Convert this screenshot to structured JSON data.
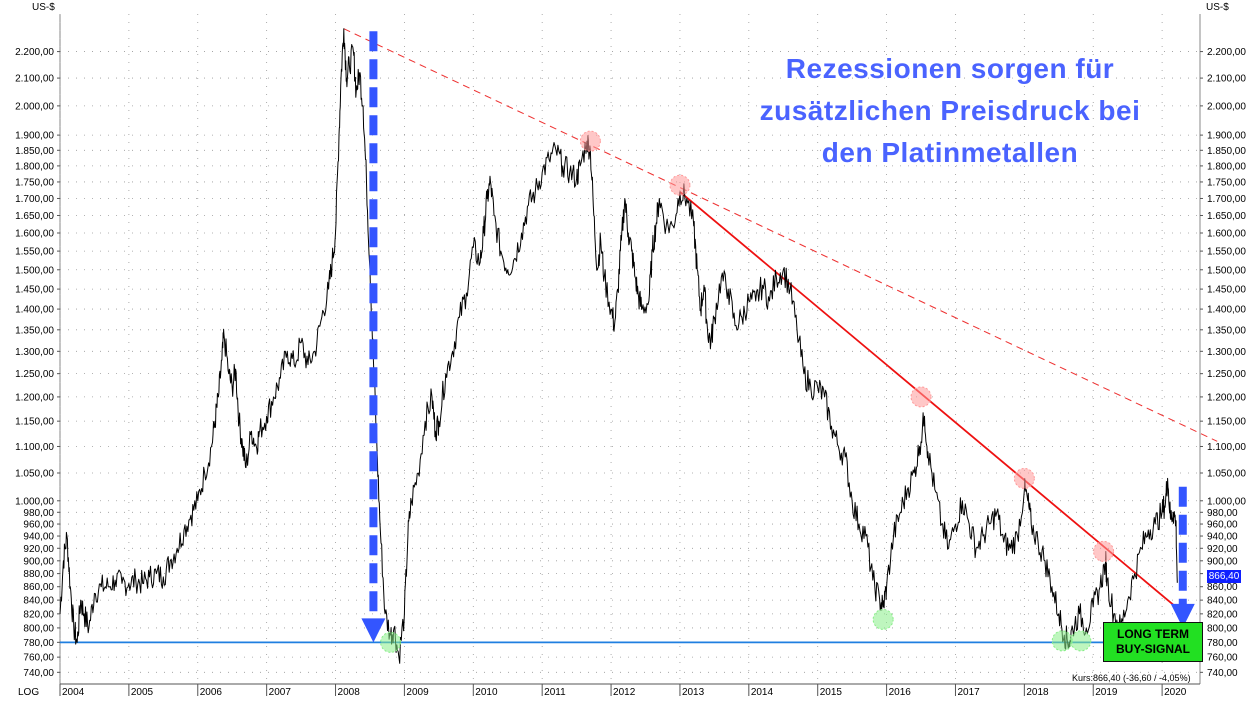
{
  "chart_data": {
    "type": "line",
    "title_lines": [
      "Rezessionen sorgen für",
      "zusätzlichen Preisdruck bei",
      "den Platinmetallen"
    ],
    "unit_left": "US-$",
    "unit_right": "US-$",
    "scale_label": "LOG",
    "log_scale": true,
    "grid": true,
    "ylim": [
      725,
      2350
    ],
    "xlim": [
      2004.0,
      2020.55
    ],
    "y_ticks": [
      {
        "value": 740,
        "label": "740,00"
      },
      {
        "value": 760,
        "label": "760,00"
      },
      {
        "value": 780,
        "label": "780,00"
      },
      {
        "value": 800,
        "label": "800,00"
      },
      {
        "value": 820,
        "label": "820,00"
      },
      {
        "value": 840,
        "label": "840,00"
      },
      {
        "value": 860,
        "label": "860,00"
      },
      {
        "value": 880,
        "label": "880,00"
      },
      {
        "value": 900,
        "label": "900,00"
      },
      {
        "value": 920,
        "label": "920,00"
      },
      {
        "value": 940,
        "label": "940,00"
      },
      {
        "value": 960,
        "label": "960,00"
      },
      {
        "value": 980,
        "label": "980,00"
      },
      {
        "value": 1000,
        "label": "1.000,00"
      },
      {
        "value": 1050,
        "label": "1.050,00"
      },
      {
        "value": 1100,
        "label": "1.100,00"
      },
      {
        "value": 1150,
        "label": "1.150,00"
      },
      {
        "value": 1200,
        "label": "1.200,00"
      },
      {
        "value": 1250,
        "label": "1.250,00"
      },
      {
        "value": 1300,
        "label": "1.300,00"
      },
      {
        "value": 1350,
        "label": "1.350,00"
      },
      {
        "value": 1400,
        "label": "1.400,00"
      },
      {
        "value": 1450,
        "label": "1.450,00"
      },
      {
        "value": 1500,
        "label": "1.500,00"
      },
      {
        "value": 1550,
        "label": "1.550,00"
      },
      {
        "value": 1600,
        "label": "1.600,00"
      },
      {
        "value": 1650,
        "label": "1.650,00"
      },
      {
        "value": 1700,
        "label": "1.700,00"
      },
      {
        "value": 1750,
        "label": "1.750,00"
      },
      {
        "value": 1800,
        "label": "1.800,00"
      },
      {
        "value": 1850,
        "label": "1.850,00"
      },
      {
        "value": 1900,
        "label": "1.900,00"
      },
      {
        "value": 2000,
        "label": "2.000,00"
      },
      {
        "value": 2100,
        "label": "2.100,00"
      },
      {
        "value": 2200,
        "label": "2.200,00"
      }
    ],
    "x_ticks": [
      {
        "value": 2004,
        "label": "2004"
      },
      {
        "value": 2005,
        "label": "2005"
      },
      {
        "value": 2006,
        "label": "2006"
      },
      {
        "value": 2007,
        "label": "2007"
      },
      {
        "value": 2008,
        "label": "2008"
      },
      {
        "value": 2009,
        "label": "2009"
      },
      {
        "value": 2010,
        "label": "2010"
      },
      {
        "value": 2011,
        "label": "2011"
      },
      {
        "value": 2012,
        "label": "2012"
      },
      {
        "value": 2013,
        "label": "2013"
      },
      {
        "value": 2014,
        "label": "2014"
      },
      {
        "value": 2015,
        "label": "2015"
      },
      {
        "value": 2016,
        "label": "2016"
      },
      {
        "value": 2017,
        "label": "2017"
      },
      {
        "value": 2018,
        "label": "2018"
      },
      {
        "value": 2019,
        "label": "2019"
      },
      {
        "value": 2020,
        "label": "2020"
      }
    ],
    "series": [
      {
        "color": "#000000",
        "points": [
          [
            2004.0,
            820
          ],
          [
            2004.05,
            900
          ],
          [
            2004.1,
            940
          ],
          [
            2004.15,
            860
          ],
          [
            2004.2,
            800
          ],
          [
            2004.25,
            780
          ],
          [
            2004.3,
            840
          ],
          [
            2004.35,
            820
          ],
          [
            2004.42,
            800
          ],
          [
            2004.5,
            850
          ],
          [
            2004.6,
            860
          ],
          [
            2004.7,
            860
          ],
          [
            2004.8,
            870
          ],
          [
            2004.9,
            865
          ],
          [
            2005.0,
            865
          ],
          [
            2005.1,
            870
          ],
          [
            2005.2,
            865
          ],
          [
            2005.3,
            875
          ],
          [
            2005.4,
            880
          ],
          [
            2005.5,
            875
          ],
          [
            2005.6,
            900
          ],
          [
            2005.7,
            920
          ],
          [
            2005.8,
            950
          ],
          [
            2005.9,
            975
          ],
          [
            2006.0,
            1000
          ],
          [
            2006.1,
            1050
          ],
          [
            2006.2,
            1100
          ],
          [
            2006.25,
            1150
          ],
          [
            2006.3,
            1200
          ],
          [
            2006.35,
            1280
          ],
          [
            2006.38,
            1340
          ],
          [
            2006.45,
            1250
          ],
          [
            2006.5,
            1220
          ],
          [
            2006.55,
            1260
          ],
          [
            2006.6,
            1150
          ],
          [
            2006.65,
            1100
          ],
          [
            2006.7,
            1060
          ],
          [
            2006.78,
            1130
          ],
          [
            2006.85,
            1100
          ],
          [
            2006.9,
            1130
          ],
          [
            2007.0,
            1160
          ],
          [
            2007.1,
            1200
          ],
          [
            2007.2,
            1240
          ],
          [
            2007.3,
            1300
          ],
          [
            2007.4,
            1270
          ],
          [
            2007.5,
            1320
          ],
          [
            2007.6,
            1270
          ],
          [
            2007.7,
            1300
          ],
          [
            2007.8,
            1380
          ],
          [
            2007.9,
            1450
          ],
          [
            2007.95,
            1520
          ],
          [
            2008.0,
            1600
          ],
          [
            2008.05,
            1900
          ],
          [
            2008.08,
            2100
          ],
          [
            2008.12,
            2290
          ],
          [
            2008.16,
            2100
          ],
          [
            2008.2,
            2150
          ],
          [
            2008.26,
            2200
          ],
          [
            2008.3,
            2050
          ],
          [
            2008.35,
            2120
          ],
          [
            2008.4,
            2000
          ],
          [
            2008.45,
            1750
          ],
          [
            2008.5,
            1500
          ],
          [
            2008.55,
            1280
          ],
          [
            2008.6,
            1100
          ],
          [
            2008.65,
            950
          ],
          [
            2008.72,
            820
          ],
          [
            2008.8,
            790
          ],
          [
            2008.85,
            800
          ],
          [
            2008.92,
            760
          ],
          [
            2009.0,
            820
          ],
          [
            2009.05,
            940
          ],
          [
            2009.1,
            1000
          ],
          [
            2009.2,
            1050
          ],
          [
            2009.3,
            1150
          ],
          [
            2009.4,
            1200
          ],
          [
            2009.45,
            1130
          ],
          [
            2009.5,
            1150
          ],
          [
            2009.6,
            1250
          ],
          [
            2009.7,
            1300
          ],
          [
            2009.8,
            1380
          ],
          [
            2009.9,
            1440
          ],
          [
            2010.0,
            1560
          ],
          [
            2010.1,
            1520
          ],
          [
            2010.15,
            1600
          ],
          [
            2010.2,
            1700
          ],
          [
            2010.25,
            1750
          ],
          [
            2010.3,
            1650
          ],
          [
            2010.4,
            1550
          ],
          [
            2010.5,
            1500
          ],
          [
            2010.6,
            1530
          ],
          [
            2010.7,
            1600
          ],
          [
            2010.8,
            1680
          ],
          [
            2010.9,
            1720
          ],
          [
            2011.0,
            1780
          ],
          [
            2011.1,
            1820
          ],
          [
            2011.2,
            1850
          ],
          [
            2011.3,
            1800
          ],
          [
            2011.4,
            1780
          ],
          [
            2011.5,
            1760
          ],
          [
            2011.55,
            1800
          ],
          [
            2011.65,
            1880
          ],
          [
            2011.7,
            1850
          ],
          [
            2011.75,
            1650
          ],
          [
            2011.8,
            1500
          ],
          [
            2011.85,
            1580
          ],
          [
            2011.9,
            1480
          ],
          [
            2012.0,
            1400
          ],
          [
            2012.05,
            1360
          ],
          [
            2012.1,
            1450
          ],
          [
            2012.15,
            1580
          ],
          [
            2012.2,
            1700
          ],
          [
            2012.25,
            1600
          ],
          [
            2012.3,
            1550
          ],
          [
            2012.35,
            1480
          ],
          [
            2012.4,
            1430
          ],
          [
            2012.45,
            1400
          ],
          [
            2012.55,
            1420
          ],
          [
            2012.6,
            1550
          ],
          [
            2012.65,
            1620
          ],
          [
            2012.7,
            1700
          ],
          [
            2012.8,
            1620
          ],
          [
            2012.9,
            1620
          ],
          [
            2013.0,
            1720
          ],
          [
            2013.1,
            1700
          ],
          [
            2013.2,
            1620
          ],
          [
            2013.25,
            1500
          ],
          [
            2013.3,
            1400
          ],
          [
            2013.35,
            1460
          ],
          [
            2013.4,
            1350
          ],
          [
            2013.45,
            1320
          ],
          [
            2013.5,
            1380
          ],
          [
            2013.6,
            1480
          ],
          [
            2013.7,
            1450
          ],
          [
            2013.8,
            1360
          ],
          [
            2013.9,
            1380
          ],
          [
            2014.0,
            1420
          ],
          [
            2014.1,
            1420
          ],
          [
            2014.2,
            1460
          ],
          [
            2014.3,
            1420
          ],
          [
            2014.4,
            1480
          ],
          [
            2014.5,
            1500
          ],
          [
            2014.6,
            1450
          ],
          [
            2014.7,
            1350
          ],
          [
            2014.8,
            1250
          ],
          [
            2014.9,
            1220
          ],
          [
            2015.0,
            1220
          ],
          [
            2015.1,
            1200
          ],
          [
            2015.2,
            1140
          ],
          [
            2015.3,
            1100
          ],
          [
            2015.4,
            1080
          ],
          [
            2015.5,
            1000
          ],
          [
            2015.6,
            960
          ],
          [
            2015.7,
            940
          ],
          [
            2015.8,
            870
          ],
          [
            2015.9,
            840
          ],
          [
            2015.95,
            830
          ],
          [
            2016.0,
            860
          ],
          [
            2016.1,
            940
          ],
          [
            2016.2,
            980
          ],
          [
            2016.3,
            1020
          ],
          [
            2016.4,
            1050
          ],
          [
            2016.48,
            1100
          ],
          [
            2016.55,
            1160
          ],
          [
            2016.6,
            1090
          ],
          [
            2016.7,
            1020
          ],
          [
            2016.8,
            960
          ],
          [
            2016.9,
            920
          ],
          [
            2017.0,
            960
          ],
          [
            2017.1,
            1000
          ],
          [
            2017.2,
            960
          ],
          [
            2017.3,
            920
          ],
          [
            2017.4,
            940
          ],
          [
            2017.5,
            960
          ],
          [
            2017.6,
            980
          ],
          [
            2017.7,
            930
          ],
          [
            2017.8,
            920
          ],
          [
            2017.9,
            940
          ],
          [
            2018.0,
            1020
          ],
          [
            2018.05,
            1000
          ],
          [
            2018.1,
            960
          ],
          [
            2018.2,
            930
          ],
          [
            2018.3,
            900
          ],
          [
            2018.4,
            860
          ],
          [
            2018.5,
            820
          ],
          [
            2018.58,
            790
          ],
          [
            2018.65,
            780
          ],
          [
            2018.7,
            800
          ],
          [
            2018.8,
            820
          ],
          [
            2018.9,
            800
          ],
          [
            2019.0,
            830
          ],
          [
            2019.1,
            860
          ],
          [
            2019.18,
            900
          ],
          [
            2019.2,
            870
          ],
          [
            2019.3,
            820
          ],
          [
            2019.4,
            800
          ],
          [
            2019.5,
            840
          ],
          [
            2019.6,
            880
          ],
          [
            2019.7,
            920
          ],
          [
            2019.8,
            950
          ],
          [
            2019.9,
            960
          ],
          [
            2020.0,
            980
          ],
          [
            2020.05,
            1000
          ],
          [
            2020.08,
            1040
          ],
          [
            2020.12,
            970
          ],
          [
            2020.16,
            980
          ],
          [
            2020.2,
            966
          ],
          [
            2020.22,
            866
          ]
        ]
      }
    ],
    "trendlines": [
      {
        "style": "solid",
        "color": "#ee1111",
        "from": [
          2013.0,
          1720
        ],
        "to": [
          2020.2,
          830
        ]
      },
      {
        "style": "dashed",
        "color": "#ee3333",
        "from": [
          2008.12,
          2290
        ],
        "to": [
          2020.8,
          1110
        ]
      },
      {
        "style": "solid",
        "color": "#1f7fe0",
        "from": [
          2004.0,
          780
        ],
        "to": [
          2020.55,
          780
        ]
      }
    ],
    "markers": [
      {
        "kind": "resistance",
        "color": "#ff9999",
        "x": 2011.7,
        "y": 1880
      },
      {
        "kind": "resistance",
        "color": "#ff9999",
        "x": 2013.0,
        "y": 1740
      },
      {
        "kind": "resistance",
        "color": "#ff9999",
        "x": 2016.5,
        "y": 1200
      },
      {
        "kind": "resistance",
        "color": "#ff9999",
        "x": 2018.0,
        "y": 1040
      },
      {
        "kind": "resistance",
        "color": "#ff9999",
        "x": 2019.15,
        "y": 915
      },
      {
        "kind": "support",
        "color": "#88ee88",
        "x": 2008.8,
        "y": 780
      },
      {
        "kind": "support",
        "color": "#88ee88",
        "x": 2015.95,
        "y": 812
      },
      {
        "kind": "support",
        "color": "#88ee88",
        "x": 2018.55,
        "y": 782
      },
      {
        "kind": "support",
        "color": "#88ee88",
        "x": 2018.82,
        "y": 782
      },
      {
        "kind": "support",
        "color": "#88ee88",
        "x": 2019.35,
        "y": 782
      }
    ],
    "arrows": [
      {
        "color": "#3355ff",
        "x": 2008.55,
        "from": 2280,
        "to": 780
      },
      {
        "color": "#3355ff",
        "x": 2020.3,
        "from": 1025,
        "to": 800
      }
    ],
    "badge": {
      "line1": "LONG TERM",
      "line2": "BUY-SIGNAL",
      "color": "#22e022"
    },
    "last_price_label": "866,40",
    "kurs_label": "Kurs:866,40 (-36,60 / -4,05%)"
  }
}
